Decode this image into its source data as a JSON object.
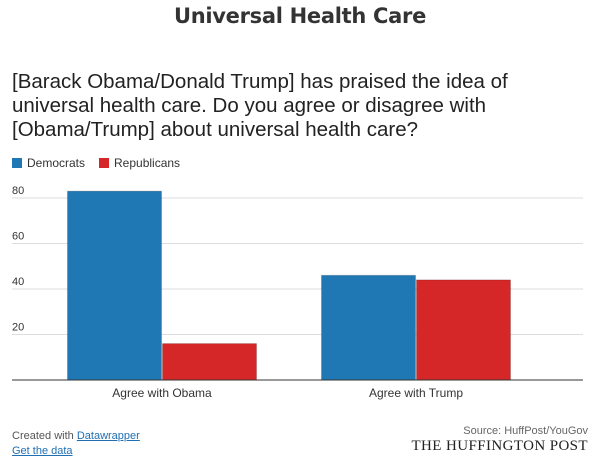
{
  "header": {
    "title": "Universal Health Care",
    "question": "[Barack Obama/Donald Trump] has praised the idea of universal health care. Do you agree or disagree with [Obama/Trump] about universal health care?"
  },
  "legend": {
    "items": [
      {
        "label": "Democrats",
        "color": "#1f77b4"
      },
      {
        "label": "Republicans",
        "color": "#d62728"
      }
    ]
  },
  "chart_data": {
    "type": "bar",
    "categories": [
      "Agree with Obama",
      "Agree with Trump"
    ],
    "series": [
      {
        "name": "Democrats",
        "color": "#1f77b4",
        "values": [
          83,
          46
        ]
      },
      {
        "name": "Republicans",
        "color": "#d62728",
        "values": [
          16,
          44
        ]
      }
    ],
    "ylim": [
      0,
      80
    ],
    "yticks": [
      20,
      40,
      60,
      80
    ],
    "grid": true,
    "legend_position": "top-left"
  },
  "footer": {
    "created_with_prefix": "Created with",
    "created_with_link": "Datawrapper",
    "get_data": "Get the data",
    "source": "Source: HuffPost/YouGov",
    "brand": "THE HUFFINGTON POST"
  }
}
